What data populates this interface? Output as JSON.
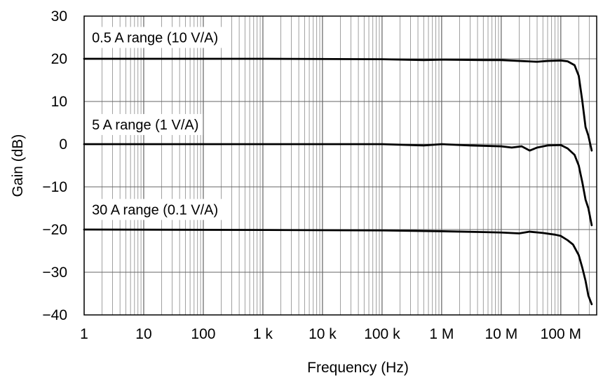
{
  "chart_data": {
    "type": "line",
    "xlabel": "Frequency (Hz)",
    "ylabel": "Gain (dB)",
    "x_scale": "log",
    "xlim": [
      1,
      400000000
    ],
    "ylim": [
      -40,
      30
    ],
    "grid": true,
    "x_ticks": [
      {
        "value": 1,
        "label": "1"
      },
      {
        "value": 10,
        "label": "10"
      },
      {
        "value": 100,
        "label": "100"
      },
      {
        "value": 1000,
        "label": "1 k"
      },
      {
        "value": 10000,
        "label": "10 k"
      },
      {
        "value": 100000,
        "label": "100 k"
      },
      {
        "value": 1000000,
        "label": "1 M"
      },
      {
        "value": 10000000,
        "label": "10 M"
      },
      {
        "value": 100000000,
        "label": "100 M"
      }
    ],
    "y_ticks": [
      {
        "value": 30,
        "label": "30"
      },
      {
        "value": 20,
        "label": "20"
      },
      {
        "value": 10,
        "label": "10"
      },
      {
        "value": 0,
        "label": "0"
      },
      {
        "value": -10,
        "label": "−10"
      },
      {
        "value": -20,
        "label": "−20"
      },
      {
        "value": -30,
        "label": "−30"
      },
      {
        "value": -40,
        "label": "−40"
      }
    ],
    "series": [
      {
        "name": "0.5 A range (10 V/A)",
        "label_at": {
          "x": 1.35,
          "y": 25
        },
        "points": [
          [
            1,
            20
          ],
          [
            1000,
            20
          ],
          [
            100000,
            19.9
          ],
          [
            500000,
            19.7
          ],
          [
            1000000,
            19.8
          ],
          [
            5000000,
            19.7
          ],
          [
            10000000,
            19.7
          ],
          [
            20000000,
            19.5
          ],
          [
            40000000,
            19.3
          ],
          [
            60000000,
            19.5
          ],
          [
            100000000,
            19.6
          ],
          [
            130000000,
            19.4
          ],
          [
            170000000,
            18.5
          ],
          [
            200000000,
            16
          ],
          [
            230000000,
            10
          ],
          [
            260000000,
            4
          ],
          [
            290000000,
            2
          ],
          [
            330000000,
            -1.5
          ]
        ]
      },
      {
        "name": "5 A range (1 V/A)",
        "label_at": {
          "x": 1.35,
          "y": 4.6
        },
        "points": [
          [
            1,
            0
          ],
          [
            100000,
            0
          ],
          [
            500000,
            -0.3
          ],
          [
            1000000,
            0
          ],
          [
            3000000,
            -0.3
          ],
          [
            10000000,
            -0.5
          ],
          [
            15000000,
            -0.8
          ],
          [
            22000000,
            -0.5
          ],
          [
            30000000,
            -1.5
          ],
          [
            40000000,
            -0.8
          ],
          [
            60000000,
            -0.3
          ],
          [
            100000000,
            -0.2
          ],
          [
            130000000,
            -1
          ],
          [
            170000000,
            -2.5
          ],
          [
            200000000,
            -5
          ],
          [
            230000000,
            -9
          ],
          [
            260000000,
            -13
          ],
          [
            290000000,
            -15
          ],
          [
            330000000,
            -19
          ]
        ]
      },
      {
        "name": "30 A range (0.1 V/A)",
        "label_at": {
          "x": 1.35,
          "y": -15.3
        },
        "points": [
          [
            1,
            -20
          ],
          [
            1000,
            -20.1
          ],
          [
            100000,
            -20.2
          ],
          [
            1000000,
            -20.4
          ],
          [
            5000000,
            -20.6
          ],
          [
            10000000,
            -20.7
          ],
          [
            20000000,
            -20.9
          ],
          [
            30000000,
            -20.5
          ],
          [
            50000000,
            -20.8
          ],
          [
            80000000,
            -21.2
          ],
          [
            100000000,
            -21.5
          ],
          [
            130000000,
            -22.5
          ],
          [
            160000000,
            -23.5
          ],
          [
            200000000,
            -26
          ],
          [
            230000000,
            -29
          ],
          [
            260000000,
            -32
          ],
          [
            290000000,
            -35.5
          ],
          [
            330000000,
            -37.5
          ]
        ]
      }
    ]
  }
}
